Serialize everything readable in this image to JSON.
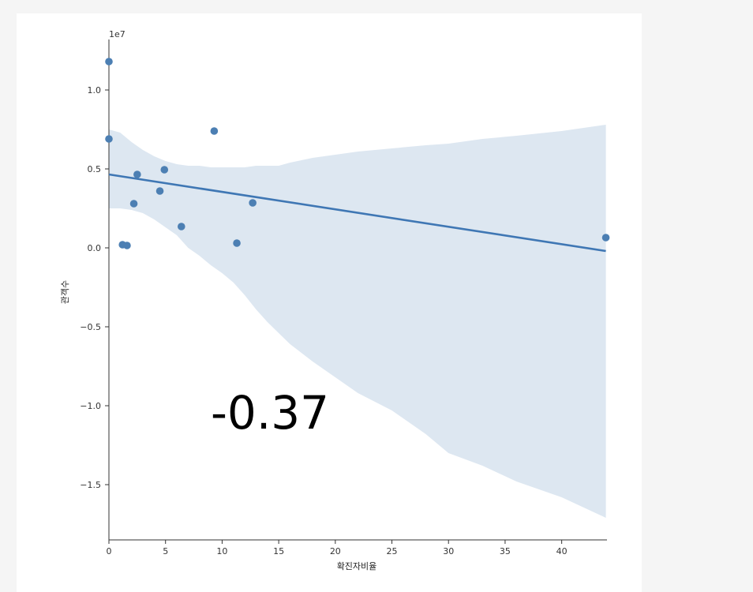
{
  "chart_data": {
    "type": "scatter",
    "xlabel": "확진자비율",
    "ylabel": "관객수",
    "offset_text": "1e7",
    "xlim": [
      0,
      44
    ],
    "ylim": [
      -1.85,
      1.32
    ],
    "x_ticks": [
      0,
      5,
      10,
      15,
      20,
      25,
      30,
      35,
      40
    ],
    "y_ticks": [
      -1.5,
      -1.0,
      -0.5,
      0.0,
      0.5,
      1.0
    ],
    "x_tick_labels": [
      "0",
      "5",
      "10",
      "15",
      "20",
      "25",
      "30",
      "35",
      "40"
    ],
    "y_tick_labels": [
      "−1.5",
      "−1.0",
      "−0.5",
      "0.0",
      "0.5",
      "1.0"
    ],
    "points": [
      {
        "x": 0.0,
        "y": 1.18
      },
      {
        "x": 0.0,
        "y": 0.69
      },
      {
        "x": 1.2,
        "y": 0.02
      },
      {
        "x": 1.6,
        "y": 0.015
      },
      {
        "x": 2.2,
        "y": 0.28
      },
      {
        "x": 2.5,
        "y": 0.465
      },
      {
        "x": 4.5,
        "y": 0.36
      },
      {
        "x": 4.9,
        "y": 0.495
      },
      {
        "x": 6.4,
        "y": 0.135
      },
      {
        "x": 9.3,
        "y": 0.74
      },
      {
        "x": 11.3,
        "y": 0.03
      },
      {
        "x": 12.7,
        "y": 0.285
      },
      {
        "x": 43.9,
        "y": 0.065
      }
    ],
    "regression_line": {
      "x": [
        0,
        43.9
      ],
      "y": [
        0.465,
        -0.02
      ]
    },
    "confidence_band": {
      "x": [
        0,
        1,
        2,
        3,
        4,
        5,
        6,
        7,
        8,
        9,
        10,
        11,
        12,
        13,
        14,
        15,
        16,
        18,
        20,
        22,
        25,
        28,
        30,
        33,
        36,
        40,
        43.9
      ],
      "upper": [
        0.75,
        0.73,
        0.67,
        0.62,
        0.58,
        0.55,
        0.53,
        0.52,
        0.52,
        0.51,
        0.51,
        0.51,
        0.51,
        0.52,
        0.52,
        0.52,
        0.54,
        0.57,
        0.59,
        0.61,
        0.63,
        0.65,
        0.66,
        0.69,
        0.71,
        0.74,
        0.78
      ],
      "lower": [
        0.25,
        0.25,
        0.24,
        0.22,
        0.18,
        0.13,
        0.08,
        0.0,
        -0.05,
        -0.11,
        -0.16,
        -0.22,
        -0.3,
        -0.39,
        -0.47,
        -0.54,
        -0.61,
        -0.72,
        -0.82,
        -0.92,
        -1.03,
        -1.18,
        -1.3,
        -1.38,
        -1.48,
        -1.58,
        -1.71
      ]
    },
    "colors": {
      "points": "#4c7fb3",
      "line": "#3f77b4",
      "band": "#dde7f1"
    },
    "annotation": "-0.37"
  }
}
